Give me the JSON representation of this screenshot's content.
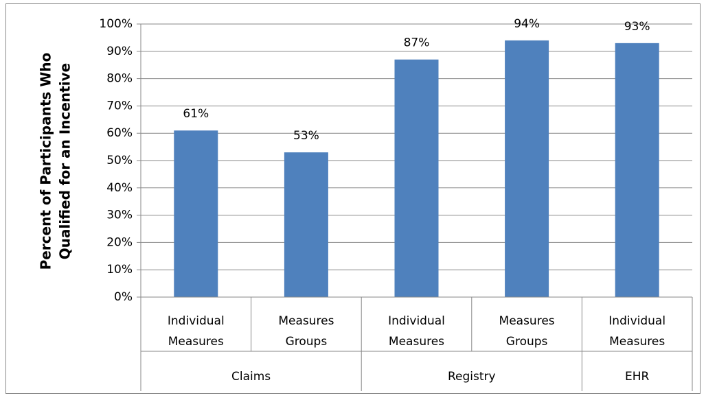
{
  "chart_data": {
    "type": "bar",
    "y_label": [
      "Percent of Participants Who",
      "Qualified for an Incentive"
    ],
    "categories": [
      "Individual Measures",
      "Measures Groups",
      "Individual Measures",
      "Measures Groups",
      "Individual Measures"
    ],
    "groups": [
      {
        "name": "Claims",
        "span": 2
      },
      {
        "name": "Registry",
        "span": 2
      },
      {
        "name": "EHR",
        "span": 1
      }
    ],
    "values": [
      61,
      53,
      87,
      94,
      93
    ],
    "value_labels": [
      "61%",
      "53%",
      "87%",
      "94%",
      "93%"
    ],
    "color": "#4f81bd",
    "ylim": [
      0,
      100
    ],
    "yticks": [
      {
        "value": 0,
        "label": "0%"
      },
      {
        "value": 10,
        "label": "10%"
      },
      {
        "value": 20,
        "label": "20%"
      },
      {
        "value": 30,
        "label": "30%"
      },
      {
        "value": 40,
        "label": "40%"
      },
      {
        "value": 50,
        "label": "50%"
      },
      {
        "value": 60,
        "label": "60%"
      },
      {
        "value": 70,
        "label": "70%"
      },
      {
        "value": 80,
        "label": "80%"
      },
      {
        "value": 90,
        "label": "90%"
      },
      {
        "value": 100,
        "label": "100%"
      }
    ],
    "grid": true
  }
}
